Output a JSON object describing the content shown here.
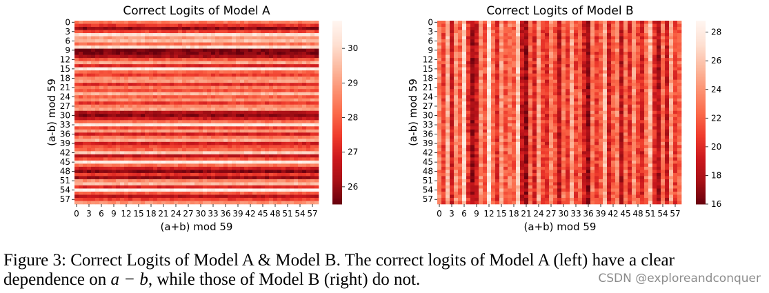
{
  "chart_data": [
    {
      "type": "heatmap",
      "title": "Correct Logits of Model A",
      "xlabel": "(a+b) mod 59",
      "ylabel": "(a-b) mod 59",
      "n": 59,
      "tick_step": 3,
      "x_ticks": [
        "0",
        "3",
        "6",
        "9",
        "12",
        "15",
        "18",
        "21",
        "24",
        "27",
        "30",
        "33",
        "36",
        "39",
        "42",
        "45",
        "48",
        "51",
        "54",
        "57"
      ],
      "y_ticks": [
        "0",
        "3",
        "6",
        "9",
        "12",
        "15",
        "18",
        "21",
        "24",
        "27",
        "30",
        "33",
        "36",
        "39",
        "42",
        "45",
        "48",
        "51",
        "54",
        "57"
      ],
      "colorbar": {
        "min": 25.5,
        "max": 30.8,
        "ticks": [
          26,
          27,
          28,
          29,
          30
        ],
        "colormap": "Reds_r"
      },
      "structure": "values depend mainly on (a-b) mod 59 (row-wise horizontal stripes)",
      "row_profile": [
        28.4,
        27.3,
        25.9,
        27.6,
        30.2,
        28.9,
        29.6,
        28.3,
        30.1,
        25.7,
        25.8,
        26.3,
        27.9,
        29.2,
        27.1,
        30.4,
        28.1,
        27.5,
        28.7,
        29.0,
        27.2,
        28.5,
        27.8,
        29.4,
        28.0,
        28.8,
        27.4,
        28.6,
        29.1,
        26.4,
        25.9,
        26.8,
        28.2,
        30.3,
        27.6,
        28.9,
        27.0,
        28.4,
        29.3,
        26.9,
        27.7,
        28.1,
        29.8,
        26.6,
        27.9,
        30.5,
        28.3,
        26.9,
        25.8,
        27.4,
        26.1,
        28.7,
        29.5,
        27.2,
        30.6,
        28.0,
        26.5,
        27.5,
        28.8
      ]
    },
    {
      "type": "heatmap",
      "title": "Correct Logits of Model B",
      "xlabel": "(a+b) mod 59",
      "ylabel": "(a-b) mod 59",
      "n": 59,
      "tick_step": 3,
      "x_ticks": [
        "0",
        "3",
        "6",
        "9",
        "12",
        "15",
        "18",
        "21",
        "24",
        "27",
        "30",
        "33",
        "36",
        "39",
        "42",
        "45",
        "48",
        "51",
        "54",
        "57"
      ],
      "y_ticks": [
        "0",
        "3",
        "6",
        "9",
        "12",
        "15",
        "18",
        "21",
        "24",
        "27",
        "30",
        "33",
        "36",
        "39",
        "42",
        "45",
        "48",
        "51",
        "54",
        "57"
      ],
      "colorbar": {
        "min": 16,
        "max": 28.8,
        "ticks": [
          16,
          18,
          20,
          22,
          24,
          26,
          28
        ],
        "colormap": "Reds_r"
      },
      "structure": "values depend mainly on (a+b) mod 59 (column-wise vertical stripes)",
      "col_profile": [
        23.5,
        21.0,
        25.2,
        19.6,
        24.0,
        22.1,
        26.8,
        20.4,
        17.6,
        19.1,
        23.8,
        21.5,
        27.6,
        22.6,
        20.2,
        24.4,
        21.8,
        23.1,
        22.0,
        26.2,
        18.9,
        17.5,
        22.4,
        19.8,
        24.6,
        21.2,
        20.0,
        23.6,
        21.6,
        18.6,
        22.8,
        20.6,
        24.8,
        21.1,
        22.6,
        19.4,
        17.2,
        23.2,
        20.8,
        22.2,
        25.4,
        19.2,
        21.9,
        23.4,
        18.4,
        22.7,
        20.3,
        24.2,
        21.4,
        19.6,
        22.9,
        25.6,
        20.1,
        18.0,
        23.0,
        19.0,
        24.5,
        20.9,
        22.3
      ]
    }
  ],
  "caption": {
    "part1": "Figure 3: Correct Logits of Model A & Model B. The correct logits of Model A (left) have a clear",
    "part2": "dependence on ",
    "math": "a − b",
    "part3": ", while those of Model B (right) do not."
  },
  "watermark": "CSDN @exploreandconquer"
}
